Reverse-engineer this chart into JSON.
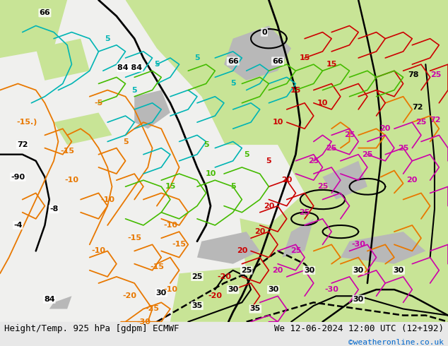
{
  "title_left": "Height/Temp. 925 hPa [gdpm] ECMWF",
  "title_right": "We 12-06-2024 12:00 UTC (12+192)",
  "credit": "©weatheronline.co.uk",
  "credit_color": "#0066cc",
  "bg_color": "#f0f0f0",
  "fig_width": 6.34,
  "fig_height": 4.9,
  "dpi": 100,
  "map_bg_light_green": "#c8e6a0",
  "map_bg_gray": "#d8d8d8",
  "map_bg_white": "#f5f5f0",
  "bottom_bar_color": "#e8e8e8",
  "title_fontsize": 9,
  "credit_fontsize": 8
}
